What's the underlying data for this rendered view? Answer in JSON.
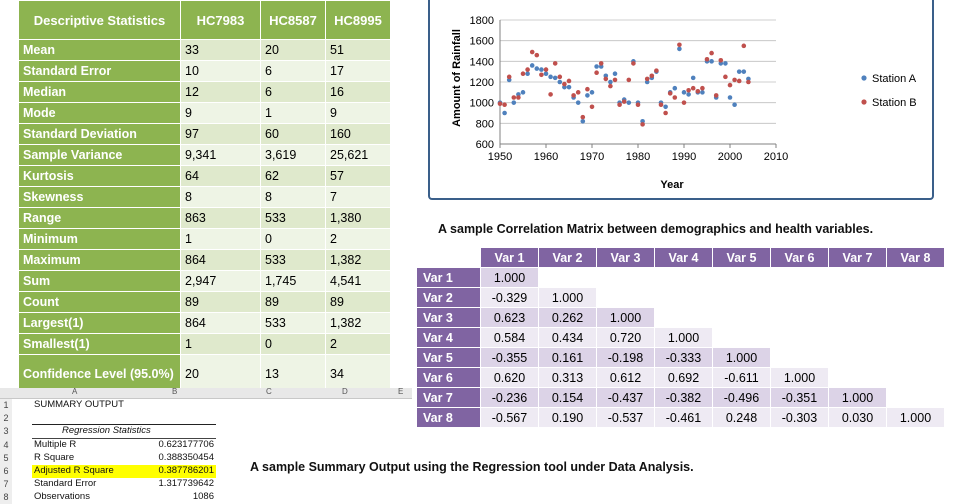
{
  "descriptive": {
    "headers": [
      "Descriptive Statistics",
      "HC7983",
      "HC8587",
      "HC8995"
    ],
    "rows": [
      {
        "label": "Mean",
        "values": [
          "33",
          "20",
          "51"
        ]
      },
      {
        "label": "Standard Error",
        "values": [
          "10",
          "6",
          "17"
        ]
      },
      {
        "label": "Median",
        "values": [
          "12",
          "6",
          "16"
        ]
      },
      {
        "label": "Mode",
        "values": [
          "9",
          "1",
          "9"
        ]
      },
      {
        "label": "Standard Deviation",
        "values": [
          "97",
          "60",
          "160"
        ]
      },
      {
        "label": "Sample Variance",
        "values": [
          "9,341",
          "3,619",
          "25,621"
        ]
      },
      {
        "label": "Kurtosis",
        "values": [
          "64",
          "62",
          "57"
        ]
      },
      {
        "label": "Skewness",
        "values": [
          "8",
          "8",
          "7"
        ]
      },
      {
        "label": "Range",
        "values": [
          "863",
          "533",
          "1,380"
        ]
      },
      {
        "label": "Minimum",
        "values": [
          "1",
          "0",
          "2"
        ]
      },
      {
        "label": "Maximum",
        "values": [
          "864",
          "533",
          "1,382"
        ]
      },
      {
        "label": "Sum",
        "values": [
          "2,947",
          "1,745",
          "4,541"
        ]
      },
      {
        "label": "Count",
        "values": [
          "89",
          "89",
          "89"
        ]
      },
      {
        "label": "Largest(1)",
        "values": [
          "864",
          "533",
          "1,382"
        ]
      },
      {
        "label": "Smallest(1)",
        "values": [
          "1",
          "0",
          "2"
        ]
      },
      {
        "label": "Confidence Level (95.0%)",
        "values": [
          "20",
          "13",
          "34"
        ]
      }
    ]
  },
  "chart_data": {
    "type": "scatter",
    "title": "",
    "xlabel": "Year",
    "ylabel": "Amount of Rainfall",
    "xlim": [
      1950,
      2010
    ],
    "ylim": [
      600,
      1800
    ],
    "xticks": [
      "1950",
      "1960",
      "1970",
      "1980",
      "1990",
      "2000",
      "2010"
    ],
    "yticks": [
      "600",
      "800",
      "1000",
      "1200",
      "1400",
      "1600",
      "1800"
    ],
    "grid": true,
    "legend": "right",
    "series": [
      {
        "name": "Station A",
        "color": "#4f81bd",
        "x": [
          1950,
          1951,
          1952,
          1953,
          1954,
          1955,
          1956,
          1957,
          1958,
          1959,
          1960,
          1961,
          1962,
          1963,
          1964,
          1965,
          1966,
          1967,
          1968,
          1969,
          1970,
          1971,
          1972,
          1973,
          1974,
          1975,
          1976,
          1977,
          1978,
          1979,
          1980,
          1981,
          1982,
          1983,
          1984,
          1985,
          1986,
          1987,
          1988,
          1989,
          1990,
          1991,
          1992,
          1993,
          1994,
          1995,
          1996,
          1997,
          1998,
          1999,
          2000,
          2001,
          2002,
          2003,
          2004
        ],
        "y": [
          1000,
          900,
          1220,
          1000,
          1080,
          1100,
          1280,
          1360,
          1330,
          1320,
          1280,
          1250,
          1240,
          1200,
          1150,
          1150,
          1050,
          1000,
          820,
          1070,
          1100,
          1350,
          1350,
          1260,
          1200,
          1280,
          1000,
          1030,
          1000,
          1400,
          1000,
          820,
          1200,
          1240,
          1300,
          1000,
          960,
          1100,
          1140,
          1520,
          1100,
          1080,
          1240,
          1100,
          1100,
          1400,
          1400,
          1050,
          1380,
          1380,
          1050,
          980,
          1300,
          1300,
          1230
        ]
      },
      {
        "name": "Station B",
        "color": "#c0504d",
        "x": [
          1950,
          1951,
          1952,
          1953,
          1954,
          1955,
          1956,
          1957,
          1958,
          1959,
          1960,
          1961,
          1962,
          1963,
          1964,
          1965,
          1966,
          1967,
          1968,
          1969,
          1970,
          1971,
          1972,
          1973,
          1974,
          1975,
          1976,
          1977,
          1978,
          1979,
          1980,
          1981,
          1982,
          1983,
          1984,
          1985,
          1986,
          1987,
          1988,
          1989,
          1990,
          1991,
          1992,
          1993,
          1994,
          1995,
          1996,
          1997,
          1998,
          1999,
          2000,
          2001,
          2002,
          2003,
          2004
        ],
        "y": [
          990,
          980,
          1250,
          1050,
          1050,
          1280,
          1320,
          1490,
          1460,
          1270,
          1320,
          1080,
          1380,
          1250,
          1180,
          1210,
          1070,
          1100,
          860,
          1130,
          960,
          1290,
          1380,
          1230,
          1160,
          1220,
          980,
          1010,
          1220,
          1380,
          980,
          790,
          1230,
          1260,
          1310,
          980,
          900,
          1090,
          1050,
          1560,
          1000,
          1120,
          1140,
          1110,
          1140,
          1420,
          1480,
          1070,
          1410,
          1250,
          1170,
          1220,
          1210,
          1550,
          1200
        ]
      }
    ]
  },
  "correlation": {
    "caption": "A sample Correlation Matrix between demographics and health variables.",
    "headers": [
      "",
      "Var 1",
      "Var 2",
      "Var 3",
      "Var 4",
      "Var 5",
      "Var 6",
      "Var 7",
      "Var 8"
    ],
    "rows": [
      {
        "label": "Var 1",
        "values": [
          "1.000",
          "",
          "",
          "",
          "",
          "",
          "",
          ""
        ]
      },
      {
        "label": "Var 2",
        "values": [
          "-0.329",
          "1.000",
          "",
          "",
          "",
          "",
          "",
          ""
        ]
      },
      {
        "label": "Var 3",
        "values": [
          "0.623",
          "0.262",
          "1.000",
          "",
          "",
          "",
          "",
          ""
        ]
      },
      {
        "label": "Var 4",
        "values": [
          "0.584",
          "0.434",
          "0.720",
          "1.000",
          "",
          "",
          "",
          ""
        ]
      },
      {
        "label": "Var 5",
        "values": [
          "-0.355",
          "0.161",
          "-0.198",
          "-0.333",
          "1.000",
          "",
          "",
          ""
        ]
      },
      {
        "label": "Var 6",
        "values": [
          "0.620",
          "0.313",
          "0.612",
          "0.692",
          "-0.611",
          "1.000",
          "",
          ""
        ]
      },
      {
        "label": "Var 7",
        "values": [
          "-0.236",
          "0.154",
          "-0.437",
          "-0.382",
          "-0.496",
          "-0.351",
          "1.000",
          ""
        ]
      },
      {
        "label": "Var 8",
        "values": [
          "-0.567",
          "0.190",
          "-0.537",
          "-0.461",
          "0.248",
          "-0.303",
          "0.030",
          "1.000"
        ]
      }
    ]
  },
  "regression": {
    "caption": "A sample Summary Output using the Regression tool under Data Analysis.",
    "col_headers": [
      "A",
      "B",
      "C",
      "D",
      "E"
    ],
    "row_numbers": [
      "1",
      "2",
      "3",
      "4",
      "5",
      "6",
      "7",
      "8"
    ],
    "summary_label": "SUMMARY OUTPUT",
    "stats_header": "Regression Statistics",
    "rows": [
      {
        "label": "Multiple R",
        "value": "0.623177706"
      },
      {
        "label": "R Square",
        "value": "0.388350454"
      },
      {
        "label": "Adjusted R Square",
        "value": "0.387786201"
      },
      {
        "label": "Standard Error",
        "value": "1.317739642"
      },
      {
        "label": "Observations",
        "value": "1086"
      }
    ],
    "highlight_color": "#ffff00"
  }
}
